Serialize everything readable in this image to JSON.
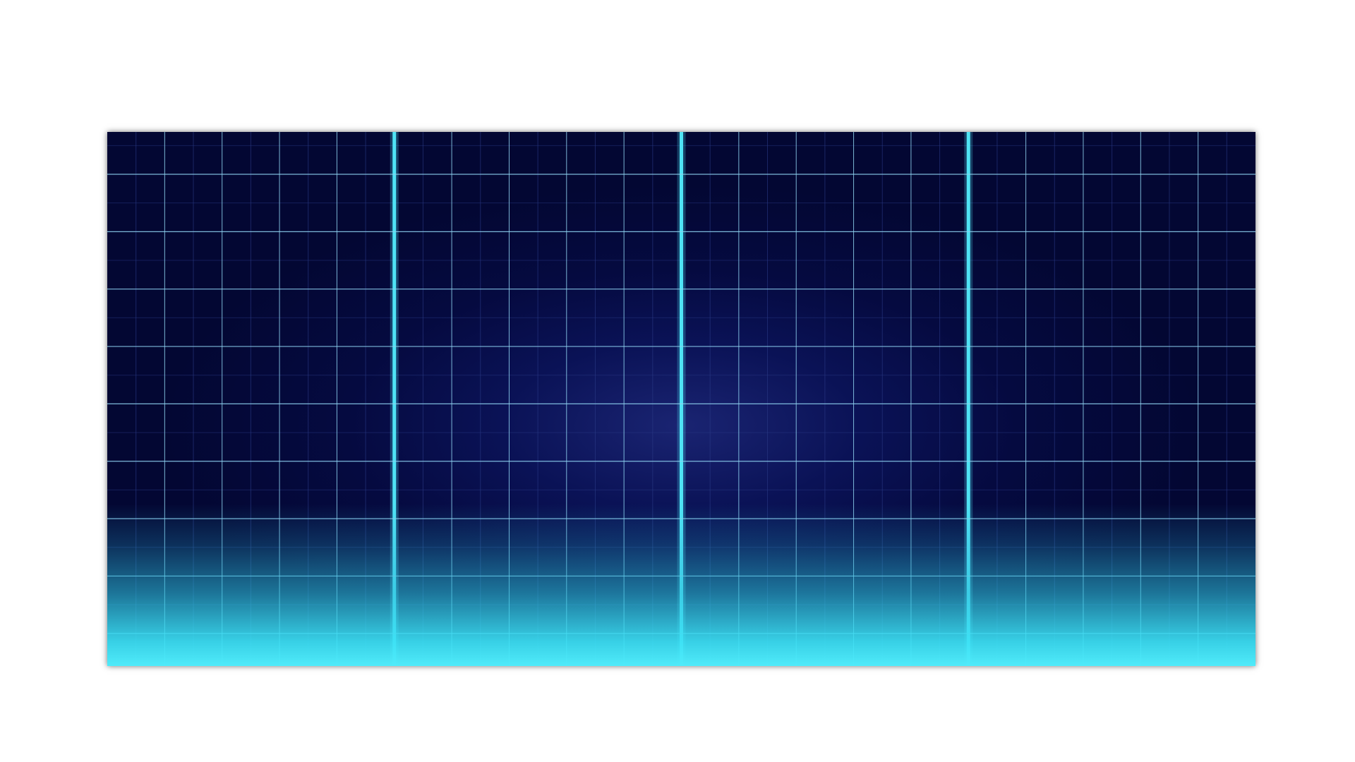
{
  "background_color": "#ffffff",
  "panel": {
    "color_dark": "#030733",
    "color_center": "#1a2472",
    "glow_color": "#4ee6f7",
    "grid_line_color": "#8fd3f0",
    "bright_line_color": "#4fe3f5",
    "minor_line_color": "#2a3a86",
    "columns": 20,
    "rows": 9,
    "bright_columns": [
      5,
      10,
      15
    ]
  }
}
